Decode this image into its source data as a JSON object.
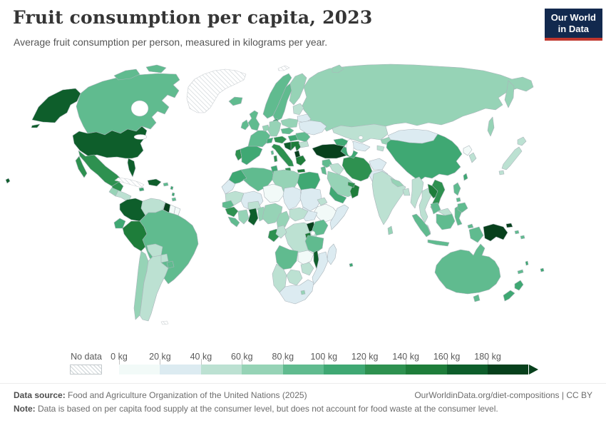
{
  "header": {
    "title": "Fruit consumption per capita, 2023",
    "subtitle": "Average fruit consumption per person, measured in kilograms per year.",
    "logo": {
      "line1": "Our World",
      "line2": "in Data",
      "bg_color": "#12294e",
      "accent_color": "#c0372e"
    }
  },
  "legend": {
    "no_data_label": "No data",
    "ticks": [
      "0 kg",
      "20 kg",
      "40 kg",
      "60 kg",
      "80 kg",
      "100 kg",
      "120 kg",
      "140 kg",
      "160 kg",
      "180 kg"
    ],
    "colors": [
      "#f2faf8",
      "#dcebf1",
      "#bce1d2",
      "#96d3b6",
      "#60bb8f",
      "#3fa873",
      "#2e9150",
      "#1e7d3a",
      "#0e5e2b",
      "#07401c"
    ]
  },
  "map": {
    "ocean_color": "#ffffff",
    "border_color": "#aab4ba",
    "no_data_border_color": "#c9ced1"
  },
  "footer": {
    "source_label": "Data source:",
    "source_text": " Food and Agriculture Organization of the United Nations (2025)",
    "link_text": "OurWorldinData.org/diet-compositions | CC BY",
    "note_label": "Note:",
    "note_text": " Data is based on per capita food supply at the consumer level, but does not account for food waste at the consumer level."
  },
  "chart_data": {
    "type": "choropleth",
    "title": "Fruit consumption per capita, 2023",
    "unit": "kilograms per person per year",
    "year": 2023,
    "bin_edges_kg": [
      0,
      20,
      40,
      60,
      80,
      100,
      120,
      140,
      160,
      180
    ],
    "bin_ranges_kg": [
      "0-20",
      "20-40",
      "40-60",
      "60-80",
      "80-100",
      "100-120",
      "120-140",
      "140-160",
      "160-180",
      "180+"
    ],
    "no_data_value": -1,
    "countries": {
      "russia": 3,
      "canada": 4,
      "united-states": 8,
      "greenland": -1,
      "mexico": 6,
      "guatemala": 3,
      "honduras-nicaragua": 2,
      "costa-rica": 5,
      "panama": 5,
      "cuba": -1,
      "dominican-republic": 8,
      "jamaica": 5,
      "puerto-rico": 4,
      "lesser-antilles": 5,
      "trinidad-tobago": 4,
      "colombia": 8,
      "venezuela": 2,
      "guyana": 9,
      "suriname": 0,
      "french-guiana": 0,
      "ecuador": 5,
      "peru": 7,
      "brazil": 4,
      "bolivia": 2,
      "paraguay": 2,
      "chile": 3,
      "argentina": 2,
      "uruguay": 4,
      "falkland-islands": -1,
      "iceland": 4,
      "svalbard": -1,
      "norway": 4,
      "sweden": 4,
      "finland": 3,
      "denmark": 5,
      "united-kingdom": 4,
      "ireland": 4,
      "portugal": 6,
      "spain": 5,
      "france": 4,
      "belgium-netherlands": 3,
      "germany": 3,
      "poland": 3,
      "czechia-slovakia": 4,
      "austria": 6,
      "switzerland": 5,
      "italy": 6,
      "slovenia-croatia": 8,
      "bosnia-serbia": 7,
      "albania": 9,
      "greece": 7,
      "hungary": 5,
      "romania": 4,
      "bulgaria": 2,
      "baltic-states": 2,
      "belarus": 1,
      "ukraine": 1,
      "turkey": 9,
      "caucasus": 5,
      "syria": 4,
      "iraq": 2,
      "israel-jordan": 4,
      "saudi-arabia": 3,
      "yemen": 5,
      "oman": 7,
      "uae-qatar": 6,
      "iran": 6,
      "afghanistan": 1,
      "pakistan": 1,
      "kazakhstan": 2,
      "uzbekistan": 1,
      "turkmenistan": 5,
      "kyrgyzstan": 3,
      "tajikistan": 2,
      "mongolia": 1,
      "china": 5,
      "india": 2,
      "nepal": 3,
      "bangladesh": 2,
      "sri-lanka": 3,
      "myanmar": 2,
      "thailand": 2,
      "laos": 7,
      "vietnam": 6,
      "cambodia": 4,
      "malaysia": 2,
      "indonesia": 4,
      "papua-new-guinea": 9,
      "philippines": 4,
      "taiwan": 5,
      "north-korea": 0,
      "south-korea": 2,
      "japan": 2,
      "morocco": 5,
      "algeria": 4,
      "tunisia": 5,
      "libya": 3,
      "egypt": 5,
      "western-sahara": 1,
      "mauritania": 2,
      "mali": 1,
      "senegal": 4,
      "guinea": 6,
      "sierra-leone-liberia": 4,
      "ivory-coast": 3,
      "burkina-faso": 2,
      "ghana": 8,
      "togo-benin": 3,
      "nigeria": 3,
      "niger": 0,
      "chad": 1,
      "sudan": 1,
      "eritrea": 2,
      "ethiopia": 0,
      "somalia": 1,
      "south-sudan": 1,
      "cameroon": 3,
      "central-african-republic": 2,
      "democratic-republic-of-congo": 2,
      "gabon": 6,
      "congo": 2,
      "uganda": 9,
      "kenya": 4,
      "rwanda-burundi": 7,
      "tanzania": 4,
      "angola": 4,
      "zambia": 0,
      "malawi": 8,
      "mozambique": 1,
      "zimbabwe": 2,
      "botswana": 2,
      "namibia": 2,
      "south-africa": 1,
      "lesotho": 3,
      "madagascar": 1,
      "mauritius": 5,
      "australia": 4,
      "new-zealand": 5,
      "new-caledonia": 4,
      "fiji": 5,
      "vanuatu": 5,
      "solomon-islands": 4
    }
  }
}
